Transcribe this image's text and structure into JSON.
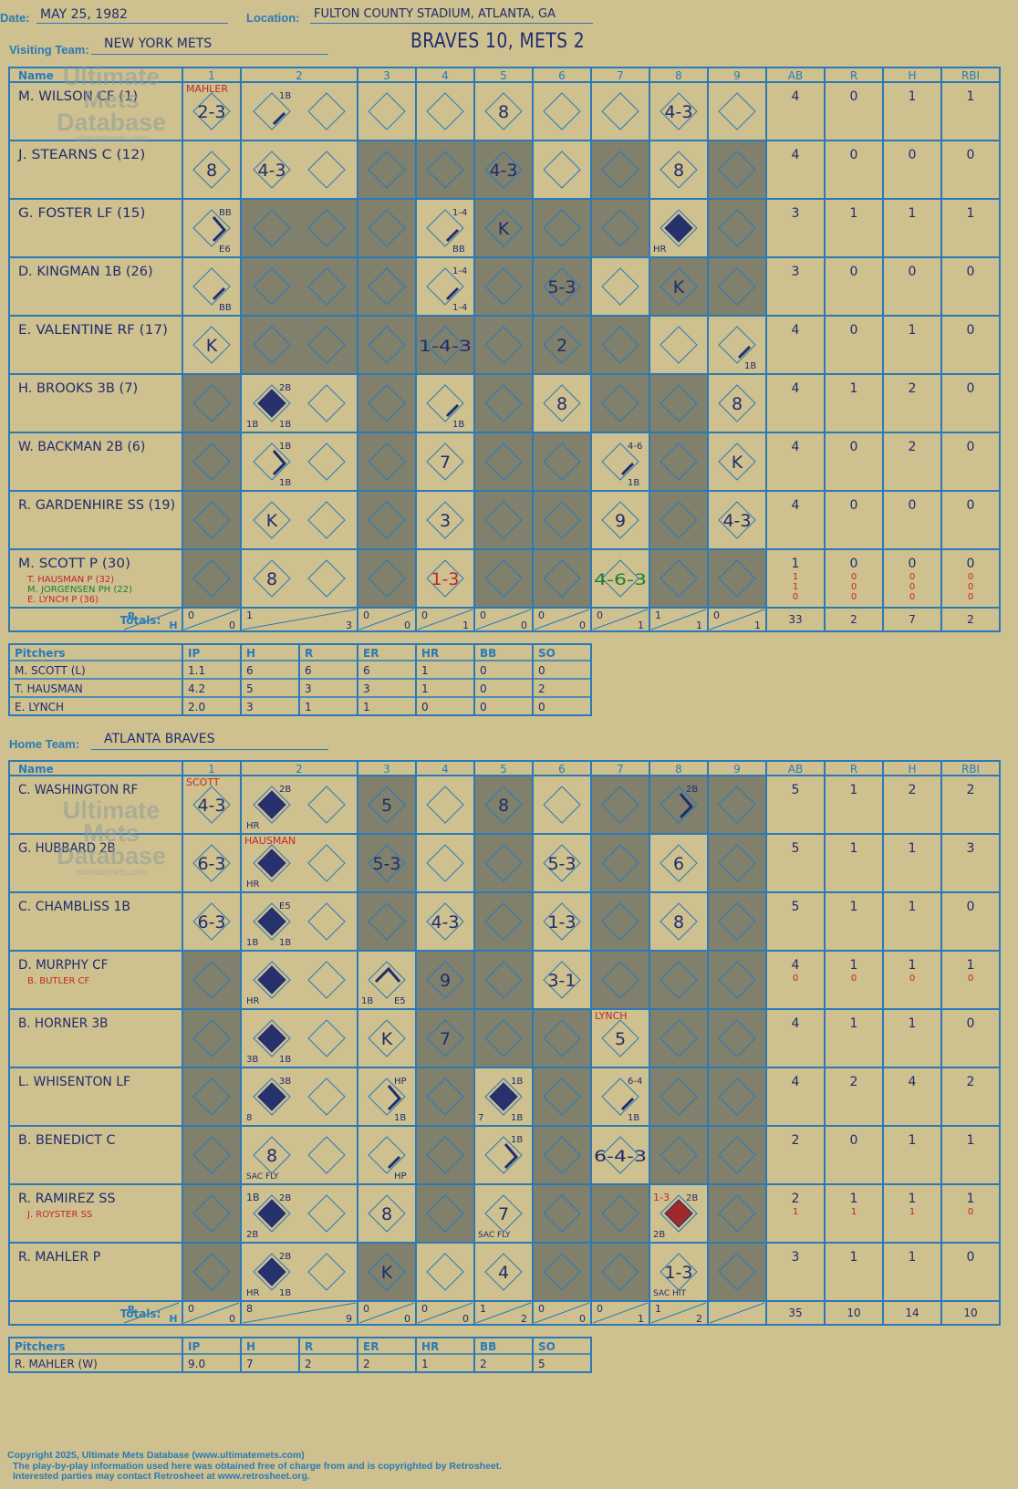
{
  "header": {
    "date_label": "Date:",
    "date": "MAY 25, 1982",
    "location_label": "Location:",
    "location": "FULTON COUNTY STADIUM, ATLANTA, GA",
    "score_title": "BRAVES 10, METS 2",
    "visiting_label": "Visiting Team:",
    "visiting_team": "NEW YORK METS",
    "home_label": "Home Team:",
    "home_team": "ATLANTA BRAVES"
  },
  "watermark": {
    "line1": "Ultimate",
    "line2": "Mets",
    "line3": "Database",
    "url": "ultimatemets.com"
  },
  "grid_headers": {
    "name": "Name",
    "innings": [
      "1",
      "2",
      "3",
      "4",
      "5",
      "6",
      "7",
      "8",
      "9"
    ],
    "stats": [
      "AB",
      "R",
      "H",
      "RBI"
    ],
    "totals": "Totals:",
    "r": "R",
    "h": "H"
  },
  "colors": {
    "background": "#cfc08f",
    "grid": "#2a7ab8",
    "dark_cell": "#80806c",
    "ink": "#1e2d6e",
    "red_ink": "#c0282a",
    "green_ink": "#18803a",
    "run_diamond": "#26316e",
    "red_diamond": "#a02a2a"
  },
  "visiting": {
    "players": [
      {
        "name": "M. WILSON CF (1)",
        "subs": [],
        "stats": [
          [
            "4",
            "0",
            "1",
            "1"
          ]
        ]
      },
      {
        "name": "J. STEARNS C (12)",
        "subs": [],
        "stats": [
          [
            "4",
            "0",
            "0",
            "0"
          ]
        ]
      },
      {
        "name": "G. FOSTER LF (15)",
        "subs": [],
        "stats": [
          [
            "3",
            "1",
            "1",
            "1"
          ]
        ]
      },
      {
        "name": "D. KINGMAN 1B (26)",
        "subs": [],
        "stats": [
          [
            "3",
            "0",
            "0",
            "0"
          ]
        ]
      },
      {
        "name": "E. VALENTINE RF (17)",
        "subs": [],
        "stats": [
          [
            "4",
            "0",
            "1",
            "0"
          ]
        ]
      },
      {
        "name": "H. BROOKS 3B (7)",
        "subs": [],
        "stats": [
          [
            "4",
            "1",
            "2",
            "0"
          ]
        ]
      },
      {
        "name": "W. BACKMAN 2B (6)",
        "subs": [],
        "stats": [
          [
            "4",
            "0",
            "2",
            "0"
          ]
        ]
      },
      {
        "name": "R. GARDENHIRE SS (19)",
        "subs": [],
        "stats": [
          [
            "4",
            "0",
            "0",
            "0"
          ]
        ]
      },
      {
        "name": "M. SCOTT P (30)",
        "subs": [
          {
            "name": "T. HAUSMAN P (32)",
            "color": "#c0282a"
          },
          {
            "name": "M. JORGENSEN PH (22)",
            "color": "#18803a"
          },
          {
            "name": "E. LYNCH P (36)",
            "color": "#c0282a"
          }
        ],
        "stats": [
          [
            "1",
            "0",
            "0",
            "0"
          ],
          [
            "1",
            "0",
            "0",
            "0"
          ],
          [
            "1",
            "0",
            "0",
            "0"
          ],
          [
            "0",
            "0",
            "0",
            "0"
          ]
        ]
      }
    ],
    "totals_innings": [
      [
        "0",
        "0"
      ],
      [
        "1",
        "3"
      ],
      [
        "0",
        "0"
      ],
      [
        "0",
        "1"
      ],
      [
        "0",
        "0"
      ],
      [
        "0",
        "0"
      ],
      [
        "0",
        "1"
      ],
      [
        "1",
        "1"
      ],
      [
        "0",
        "1"
      ]
    ],
    "totals_stats": [
      "33",
      "2",
      "7",
      "2"
    ],
    "dark": [
      [
        0,
        0,
        0,
        0,
        0,
        0,
        0,
        0,
        0
      ],
      [
        0,
        0,
        1,
        1,
        1,
        0,
        1,
        0,
        1
      ],
      [
        0,
        1,
        1,
        0,
        1,
        1,
        1,
        0,
        1
      ],
      [
        0,
        1,
        1,
        0,
        1,
        1,
        0,
        1,
        1
      ],
      [
        0,
        1,
        1,
        1,
        1,
        1,
        1,
        0,
        0
      ],
      [
        1,
        0,
        1,
        0,
        1,
        0,
        1,
        1,
        0
      ],
      [
        1,
        0,
        1,
        0,
        1,
        1,
        0,
        1,
        0
      ],
      [
        1,
        0,
        1,
        0,
        1,
        1,
        0,
        1,
        0
      ],
      [
        1,
        0,
        1,
        0,
        1,
        1,
        0,
        1,
        1
      ]
    ],
    "plays": [
      [
        0,
        0,
        "2-3"
      ],
      [
        0,
        1,
        "",
        "1B",
        "",
        "",
        "1"
      ],
      [
        0,
        4,
        "8"
      ],
      [
        0,
        7,
        "4-3"
      ],
      [
        1,
        0,
        "8"
      ],
      [
        1,
        1,
        "4-3"
      ],
      [
        1,
        4,
        "4-3"
      ],
      [
        1,
        7,
        "8"
      ],
      [
        2,
        0,
        "",
        "BB",
        "E6",
        "",
        "2"
      ],
      [
        2,
        3,
        "",
        "1-4",
        "BB",
        "",
        "1"
      ],
      [
        2,
        4,
        "K"
      ],
      [
        2,
        7,
        "",
        "",
        "",
        "HR",
        "run"
      ],
      [
        3,
        0,
        "",
        "",
        "BB",
        "",
        "1"
      ],
      [
        3,
        3,
        "",
        "1-4",
        "1-4",
        "",
        "1"
      ],
      [
        3,
        5,
        "5-3"
      ],
      [
        3,
        7,
        "K"
      ],
      [
        4,
        0,
        "K"
      ],
      [
        4,
        3,
        "1-4-3"
      ],
      [
        4,
        5,
        "2"
      ],
      [
        4,
        8,
        "",
        "",
        "1B",
        "",
        "1"
      ],
      [
        5,
        1,
        "",
        "2B",
        "1B",
        "1B",
        "run"
      ],
      [
        5,
        3,
        "",
        "",
        "1B",
        "",
        "1"
      ],
      [
        5,
        5,
        "8"
      ],
      [
        5,
        8,
        "8"
      ],
      [
        6,
        1,
        "",
        "1B",
        "1B",
        "",
        "2"
      ],
      [
        6,
        3,
        "7"
      ],
      [
        6,
        6,
        "",
        "4-6",
        "1B",
        "",
        "1"
      ],
      [
        6,
        8,
        "K"
      ],
      [
        7,
        1,
        "K"
      ],
      [
        7,
        3,
        "3"
      ],
      [
        7,
        6,
        "9"
      ],
      [
        7,
        8,
        "4-3"
      ],
      [
        8,
        1,
        "8"
      ],
      [
        8,
        3,
        "1-3",
        "",
        "",
        "",
        "",
        "red"
      ],
      [
        8,
        6,
        "4-6-3",
        "",
        "",
        "",
        "",
        "green"
      ]
    ],
    "annotations": [
      {
        "r": 0,
        "c": 0,
        "text": "MAHLER",
        "color": "#c0282a"
      }
    ]
  },
  "visiting_pitchers": {
    "headers": [
      "Pitchers",
      "IP",
      "H",
      "R",
      "ER",
      "HR",
      "BB",
      "SO"
    ],
    "rows": [
      [
        "M. SCOTT (L)",
        "1.1",
        "6",
        "6",
        "6",
        "1",
        "0",
        "0"
      ],
      [
        "T. HAUSMAN",
        "4.2",
        "5",
        "3",
        "3",
        "1",
        "0",
        "2"
      ],
      [
        "E. LYNCH",
        "2.0",
        "3",
        "1",
        "1",
        "0",
        "0",
        "0"
      ]
    ]
  },
  "home": {
    "players": [
      {
        "name": "C. WASHINGTON RF",
        "subs": [],
        "stats": [
          [
            "5",
            "1",
            "2",
            "2"
          ]
        ]
      },
      {
        "name": "G. HUBBARD 2B",
        "subs": [],
        "stats": [
          [
            "5",
            "1",
            "1",
            "3"
          ]
        ]
      },
      {
        "name": "C. CHAMBLISS 1B",
        "subs": [],
        "stats": [
          [
            "5",
            "1",
            "1",
            "0"
          ]
        ]
      },
      {
        "name": "D. MURPHY CF",
        "subs": [
          {
            "name": "B. BUTLER CF",
            "color": "#c0282a"
          }
        ],
        "stats": [
          [
            "4",
            "1",
            "1",
            "1"
          ],
          [
            "0",
            "0",
            "0",
            "0"
          ]
        ]
      },
      {
        "name": "B. HORNER 3B",
        "subs": [],
        "stats": [
          [
            "4",
            "1",
            "1",
            "0"
          ]
        ]
      },
      {
        "name": "L. WHISENTON LF",
        "subs": [],
        "stats": [
          [
            "4",
            "2",
            "4",
            "2"
          ]
        ]
      },
      {
        "name": "B. BENEDICT C",
        "subs": [],
        "stats": [
          [
            "2",
            "0",
            "1",
            "1"
          ]
        ]
      },
      {
        "name": "R. RAMIREZ SS",
        "subs": [
          {
            "name": "J. ROYSTER SS",
            "color": "#c0282a"
          }
        ],
        "stats": [
          [
            "2",
            "1",
            "1",
            "1"
          ],
          [
            "1",
            "1",
            "1",
            "0"
          ]
        ]
      },
      {
        "name": "R. MAHLER P",
        "subs": [],
        "stats": [
          [
            "3",
            "1",
            "1",
            "0"
          ]
        ]
      }
    ],
    "totals_innings": [
      [
        "0",
        "0"
      ],
      [
        "8",
        "9"
      ],
      [
        "0",
        "0"
      ],
      [
        "0",
        "0"
      ],
      [
        "1",
        "2"
      ],
      [
        "0",
        "0"
      ],
      [
        "0",
        "1"
      ],
      [
        "1",
        "2"
      ],
      [
        "",
        ""
      ]
    ],
    "totals_stats": [
      "35",
      "10",
      "14",
      "10"
    ],
    "dark": [
      [
        0,
        0,
        1,
        0,
        1,
        0,
        1,
        1,
        1
      ],
      [
        0,
        0,
        1,
        0,
        1,
        0,
        1,
        0,
        1
      ],
      [
        0,
        0,
        1,
        0,
        1,
        0,
        1,
        0,
        1
      ],
      [
        1,
        0,
        0,
        1,
        1,
        0,
        1,
        1,
        1
      ],
      [
        1,
        0,
        0,
        1,
        1,
        1,
        0,
        1,
        1
      ],
      [
        1,
        0,
        0,
        1,
        0,
        1,
        0,
        1,
        1
      ],
      [
        1,
        0,
        0,
        1,
        0,
        1,
        0,
        1,
        1
      ],
      [
        1,
        0,
        0,
        1,
        0,
        1,
        1,
        0,
        1
      ],
      [
        1,
        0,
        1,
        0,
        0,
        1,
        1,
        0,
        1
      ]
    ],
    "plays": [
      [
        0,
        0,
        "4-3"
      ],
      [
        0,
        1,
        "",
        "2B",
        "",
        "HR",
        "run"
      ],
      [
        0,
        2,
        "5"
      ],
      [
        0,
        4,
        "8"
      ],
      [
        0,
        7,
        "",
        "2B",
        "",
        "",
        "2"
      ],
      [
        1,
        0,
        "6-3"
      ],
      [
        1,
        1,
        "",
        "",
        "",
        "HR",
        "run"
      ],
      [
        1,
        2,
        "5-3"
      ],
      [
        1,
        5,
        "5-3"
      ],
      [
        1,
        7,
        "6"
      ],
      [
        2,
        0,
        "6-3"
      ],
      [
        2,
        1,
        "",
        "E5",
        "1B",
        "1B",
        "run"
      ],
      [
        2,
        3,
        "4-3"
      ],
      [
        2,
        5,
        "1-3"
      ],
      [
        2,
        7,
        "8"
      ],
      [
        3,
        1,
        "",
        "",
        "",
        "HR",
        "run"
      ],
      [
        3,
        2,
        "",
        "",
        "E5",
        "1B",
        "3"
      ],
      [
        3,
        3,
        "9"
      ],
      [
        3,
        5,
        "3-1"
      ],
      [
        4,
        1,
        "",
        "",
        "1B",
        "3B",
        "run"
      ],
      [
        4,
        2,
        "K"
      ],
      [
        4,
        3,
        "7"
      ],
      [
        4,
        6,
        "5"
      ],
      [
        5,
        1,
        "",
        "3B",
        "",
        "8",
        "run"
      ],
      [
        5,
        2,
        "",
        "HP",
        "1B",
        "",
        "2"
      ],
      [
        5,
        4,
        "",
        "1B",
        "1B",
        "7",
        "run"
      ],
      [
        5,
        6,
        "",
        "6-4",
        "1B",
        "",
        "1"
      ],
      [
        6,
        1,
        "8",
        "",
        "",
        "SAC FLY"
      ],
      [
        6,
        2,
        "",
        "",
        "HP",
        "",
        "1"
      ],
      [
        6,
        4,
        "",
        "1B",
        "",
        "",
        "2"
      ],
      [
        6,
        6,
        "6-4-3"
      ],
      [
        7,
        1,
        "",
        "2B",
        "",
        "2B",
        "run",
        "",
        "1B"
      ],
      [
        7,
        2,
        "8"
      ],
      [
        7,
        4,
        "7",
        "",
        "",
        "SAC FLY"
      ],
      [
        7,
        7,
        "",
        "2B",
        "",
        "2B",
        "redrun",
        "",
        "1-3"
      ],
      [
        8,
        1,
        "",
        "2B",
        "1B",
        "HR",
        "run"
      ],
      [
        8,
        2,
        "K"
      ],
      [
        8,
        4,
        "4"
      ],
      [
        8,
        7,
        "1-3",
        "",
        "",
        "SAC HIT"
      ]
    ],
    "annotations": [
      {
        "r": 0,
        "c": 0,
        "text": "SCOTT",
        "color": "#c0282a"
      },
      {
        "r": 1,
        "c": 1,
        "text": "HAUSMAN",
        "color": "#c0282a"
      },
      {
        "r": 4,
        "c": 6,
        "text": "LYNCH",
        "color": "#c0282a"
      }
    ]
  },
  "home_pitchers": {
    "headers": [
      "Pitchers",
      "IP",
      "H",
      "R",
      "ER",
      "HR",
      "BB",
      "SO"
    ],
    "rows": [
      [
        "R. MAHLER (W)",
        "9.0",
        "7",
        "2",
        "2",
        "1",
        "2",
        "5"
      ]
    ]
  },
  "footer": {
    "copyright": "Copyright 2025, Ultimate Mets Database (www.ultimatemets.com)",
    "line2": "The play-by-play information used here was obtained free of charge from and is copyrighted by Retrosheet.",
    "line3": "Interested parties may contact Retrosheet at www.retrosheet.org."
  }
}
